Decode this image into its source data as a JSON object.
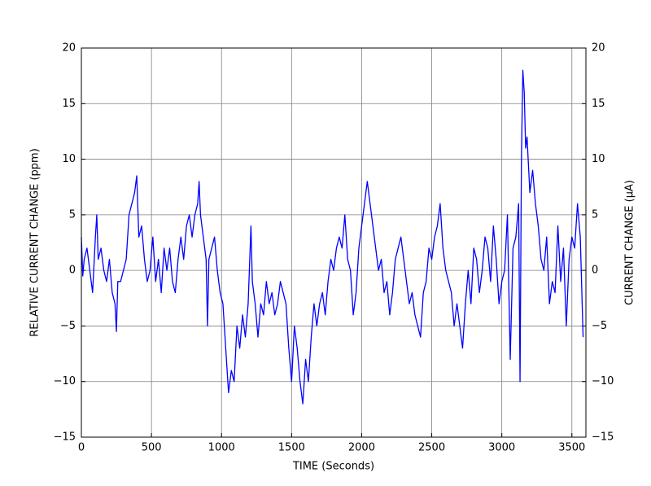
{
  "chart_data": {
    "type": "line",
    "x_label": "TIME (Seconds)",
    "y_label": "RELATIVE CURRENT CHANGE (ppm)",
    "y2_label": "CURRENT CHANGE (µA)",
    "color": "#0000ff",
    "grid": true,
    "x": [
      0,
      10,
      20,
      40,
      60,
      80,
      100,
      110,
      120,
      140,
      160,
      180,
      200,
      220,
      240,
      250,
      260,
      280,
      300,
      320,
      340,
      360,
      380,
      395,
      410,
      430,
      450,
      470,
      490,
      510,
      530,
      550,
      570,
      590,
      610,
      630,
      650,
      670,
      690,
      710,
      730,
      750,
      770,
      790,
      810,
      830,
      840,
      850,
      870,
      890,
      900,
      910,
      930,
      950,
      970,
      990,
      1010,
      1030,
      1050,
      1070,
      1090,
      1110,
      1130,
      1150,
      1170,
      1190,
      1210,
      1220,
      1240,
      1260,
      1280,
      1300,
      1320,
      1340,
      1360,
      1380,
      1400,
      1420,
      1440,
      1460,
      1480,
      1500,
      1520,
      1540,
      1560,
      1580,
      1600,
      1620,
      1640,
      1660,
      1680,
      1700,
      1720,
      1740,
      1760,
      1780,
      1800,
      1820,
      1840,
      1860,
      1880,
      1900,
      1920,
      1940,
      1960,
      1980,
      2000,
      2020,
      2040,
      2060,
      2080,
      2100,
      2120,
      2140,
      2160,
      2180,
      2200,
      2220,
      2240,
      2260,
      2280,
      2300,
      2320,
      2340,
      2360,
      2380,
      2400,
      2420,
      2440,
      2460,
      2480,
      2500,
      2520,
      2540,
      2560,
      2580,
      2600,
      2620,
      2640,
      2660,
      2680,
      2700,
      2720,
      2740,
      2760,
      2780,
      2800,
      2820,
      2840,
      2860,
      2880,
      2900,
      2920,
      2940,
      2960,
      2980,
      3000,
      3020,
      3040,
      3060,
      3080,
      3100,
      3120,
      3130,
      3140,
      3150,
      3160,
      3170,
      3180,
      3200,
      3220,
      3240,
      3260,
      3280,
      3300,
      3320,
      3340,
      3360,
      3380,
      3400,
      3420,
      3440,
      3460,
      3480,
      3500,
      3520,
      3540,
      3560,
      3580
    ],
    "values": [
      3,
      -0.5,
      1,
      2,
      0,
      -2,
      3,
      5,
      1,
      2,
      0,
      -1,
      1,
      -2,
      -3,
      -5.5,
      -1,
      -1,
      0,
      1,
      5,
      6,
      7,
      8.5,
      3,
      4,
      1,
      -1,
      0,
      3,
      -1,
      1,
      -2,
      2,
      0,
      2,
      -1,
      -2,
      1,
      3,
      1,
      4,
      5,
      3,
      5,
      6,
      8,
      5,
      3,
      1,
      -5,
      1,
      2,
      3,
      0,
      -2,
      -3,
      -7,
      -11,
      -9,
      -10,
      -5,
      -7,
      -4,
      -6,
      -3,
      4,
      -1,
      -3,
      -6,
      -3,
      -4,
      -1,
      -3,
      -2,
      -4,
      -3,
      -1,
      -2,
      -3,
      -7,
      -10,
      -5,
      -7,
      -10,
      -12,
      -8,
      -10,
      -6,
      -3,
      -5,
      -3,
      -2,
      -4,
      -1,
      1,
      0,
      2,
      3,
      2,
      5,
      1,
      0,
      -4,
      -2,
      2,
      4,
      6,
      8,
      6,
      4,
      2,
      0,
      1,
      -2,
      -1,
      -4,
      -2,
      1,
      2,
      3,
      1,
      -1,
      -3,
      -2,
      -4,
      -5,
      -6,
      -2,
      -1,
      2,
      1,
      3,
      4,
      6,
      2,
      0,
      -1,
      -2,
      -5,
      -3,
      -5,
      -7,
      -3,
      0,
      -3,
      2,
      1,
      -2,
      0,
      3,
      2,
      -1,
      4,
      1,
      -3,
      -1,
      0,
      5,
      -8,
      2,
      3,
      6,
      -10,
      10,
      18,
      16,
      11,
      12,
      7,
      9,
      6,
      4,
      1,
      0,
      3,
      -3,
      -1,
      -2,
      4,
      -1,
      2,
      -5,
      1,
      3,
      2,
      6,
      3,
      -6
    ],
    "xlim": [
      0,
      3600
    ],
    "xticks": [
      0,
      500,
      1000,
      1500,
      2000,
      2500,
      3000,
      3500
    ],
    "ylim": [
      -15,
      20
    ],
    "yticks": [
      {
        "value": -15,
        "label": "−15"
      },
      {
        "value": -10,
        "label": "−10"
      },
      {
        "value": -5,
        "label": "−5"
      },
      0,
      5,
      10,
      15,
      20
    ],
    "y2lim": [
      -15,
      20
    ],
    "y2ticks": [
      {
        "value": -15,
        "label": "−15"
      },
      {
        "value": -10,
        "label": "−10"
      },
      {
        "value": -5,
        "label": "−5"
      },
      0,
      5,
      10,
      15,
      20
    ]
  }
}
